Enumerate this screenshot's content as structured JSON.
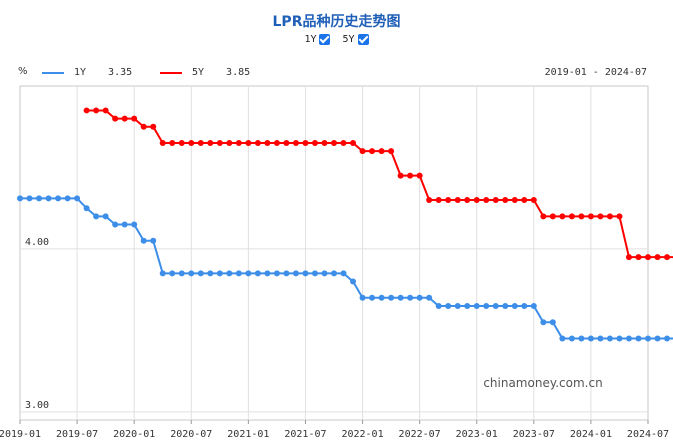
{
  "title": "LPR品种历史走势图",
  "toggles": [
    {
      "label": "1Y",
      "checked": true
    },
    {
      "label": "5Y",
      "checked": true
    }
  ],
  "unit": "%",
  "legend": [
    {
      "name": "1Y",
      "value": "3.35",
      "color": "#3d8ee8"
    },
    {
      "name": "5Y",
      "value": "3.85",
      "color": "#ff0000"
    }
  ],
  "date_range": "2019-01 - 2024-07",
  "watermark": "chinamoney.com.cn",
  "chart_data": {
    "type": "line",
    "x_tick_labels": [
      "2019-01",
      "2019-07",
      "2020-01",
      "2020-07",
      "2021-01",
      "2021-07",
      "2022-01",
      "2022-07",
      "2023-01",
      "2023-07",
      "2024-01",
      "2024-07"
    ],
    "y_tick_labels": [
      "4.00",
      "3.00"
    ],
    "ylim": [
      2.95,
      5.0
    ],
    "x_start": "2019-01",
    "grid": true,
    "series": [
      {
        "name": "1Y",
        "color": "#3d8ee8",
        "values": [
          4.31,
          4.31,
          4.31,
          4.31,
          4.31,
          4.31,
          4.31,
          4.25,
          4.2,
          4.2,
          4.15,
          4.15,
          4.15,
          4.05,
          4.05,
          3.85,
          3.85,
          3.85,
          3.85,
          3.85,
          3.85,
          3.85,
          3.85,
          3.85,
          3.85,
          3.85,
          3.85,
          3.85,
          3.85,
          3.85,
          3.85,
          3.85,
          3.85,
          3.85,
          3.85,
          3.8,
          3.7,
          3.7,
          3.7,
          3.7,
          3.7,
          3.7,
          3.7,
          3.7,
          3.65,
          3.65,
          3.65,
          3.65,
          3.65,
          3.65,
          3.65,
          3.65,
          3.65,
          3.65,
          3.65,
          3.55,
          3.55,
          3.45,
          3.45,
          3.45,
          3.45,
          3.45,
          3.45,
          3.45,
          3.45,
          3.45,
          3.45,
          3.45,
          3.45,
          3.45,
          3.35
        ]
      },
      {
        "name": "5Y",
        "color": "#ff0000",
        "values": [
          null,
          null,
          null,
          null,
          null,
          null,
          null,
          4.85,
          4.85,
          4.85,
          4.8,
          4.8,
          4.8,
          4.75,
          4.75,
          4.65,
          4.65,
          4.65,
          4.65,
          4.65,
          4.65,
          4.65,
          4.65,
          4.65,
          4.65,
          4.65,
          4.65,
          4.65,
          4.65,
          4.65,
          4.65,
          4.65,
          4.65,
          4.65,
          4.65,
          4.65,
          4.6,
          4.6,
          4.6,
          4.6,
          4.45,
          4.45,
          4.45,
          4.3,
          4.3,
          4.3,
          4.3,
          4.3,
          4.3,
          4.3,
          4.3,
          4.3,
          4.3,
          4.3,
          4.3,
          4.2,
          4.2,
          4.2,
          4.2,
          4.2,
          4.2,
          4.2,
          4.2,
          4.2,
          3.95,
          3.95,
          3.95,
          3.95,
          3.95,
          3.95,
          3.85
        ]
      }
    ]
  }
}
